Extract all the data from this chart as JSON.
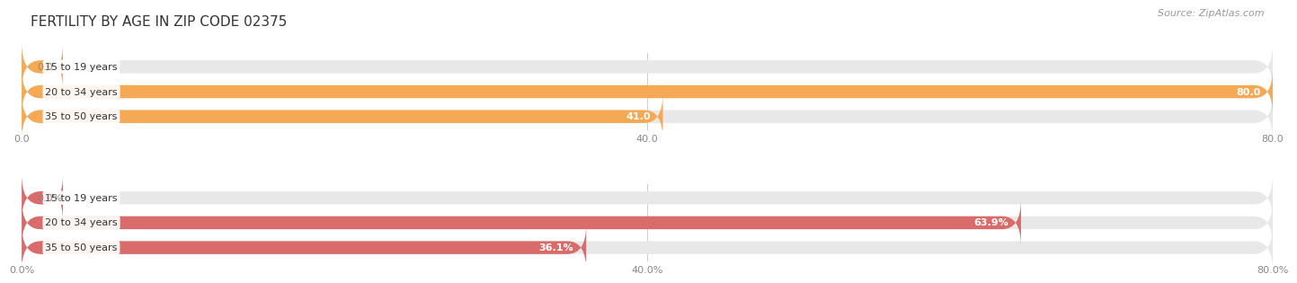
{
  "title": "FERTILITY BY AGE IN ZIP CODE 02375",
  "source": "Source: ZipAtlas.com",
  "background_color": "#ffffff",
  "top_chart": {
    "categories": [
      "15 to 19 years",
      "20 to 34 years",
      "35 to 50 years"
    ],
    "values": [
      0.0,
      80.0,
      41.0
    ],
    "bar_color": "#f5a954",
    "bar_bg_color": "#e8e8e8",
    "x_ticks": [
      0.0,
      40.0,
      80.0
    ],
    "x_tick_labels": [
      "0.0",
      "40.0",
      "80.0"
    ],
    "x_max": 80.0
  },
  "bottom_chart": {
    "categories": [
      "15 to 19 years",
      "20 to 34 years",
      "35 to 50 years"
    ],
    "values": [
      0.0,
      63.9,
      36.1
    ],
    "bar_color": "#d96b6b",
    "bar_bg_color": "#e8e8e8",
    "x_ticks": [
      0.0,
      40.0,
      80.0
    ],
    "x_tick_labels": [
      "0.0%",
      "40.0%",
      "80.0%"
    ],
    "x_max": 80.0
  },
  "title_fontsize": 11,
  "source_fontsize": 8,
  "label_fontsize": 8,
  "tick_fontsize": 8,
  "category_fontsize": 8
}
